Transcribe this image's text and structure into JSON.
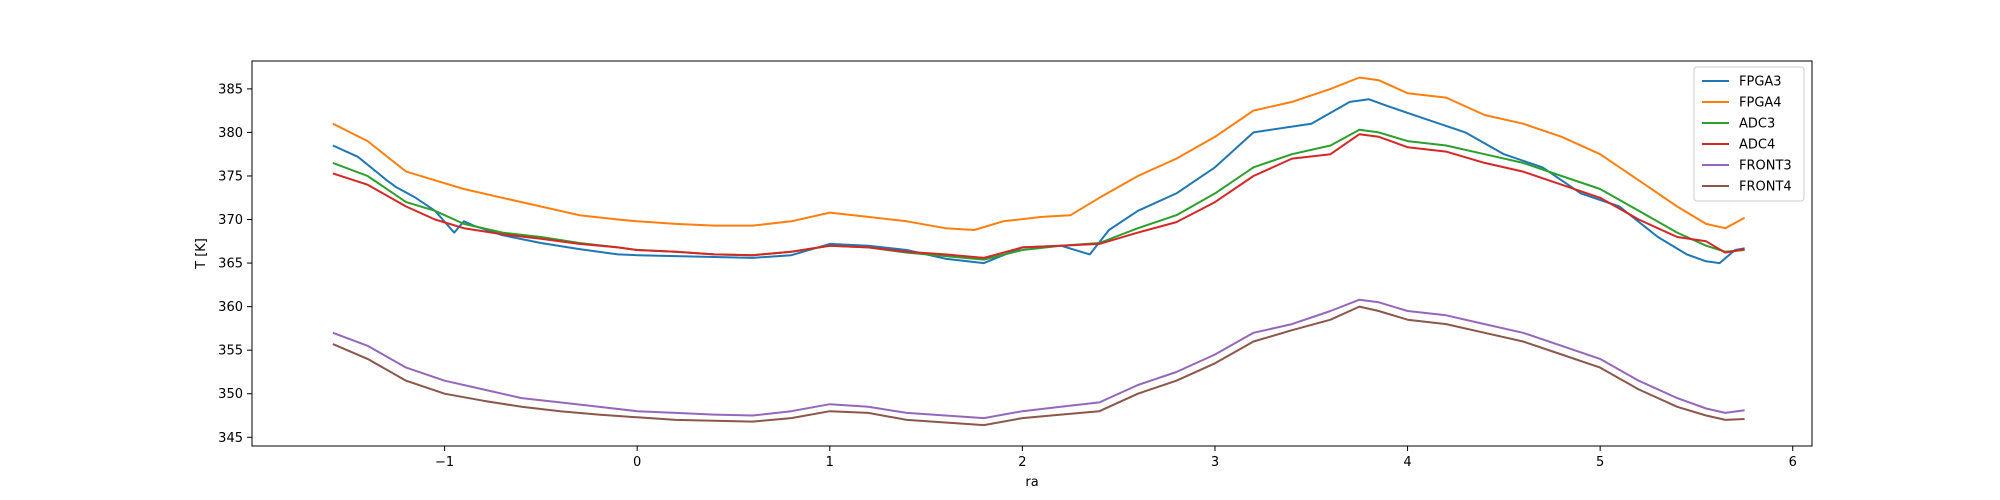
{
  "chart_data": {
    "type": "line",
    "title": "",
    "xlabel": "ra",
    "ylabel": "T [K]",
    "xlim": [
      -2.0,
      6.1
    ],
    "ylim": [
      344.0,
      388.2
    ],
    "xticks": [
      -1,
      0,
      1,
      2,
      3,
      4,
      5,
      6
    ],
    "xtick_labels": [
      "−1",
      "0",
      "1",
      "2",
      "3",
      "4",
      "5",
      "6"
    ],
    "yticks": [
      345,
      350,
      355,
      360,
      365,
      370,
      375,
      380,
      385
    ],
    "ytick_labels": [
      "345",
      "350",
      "355",
      "360",
      "365",
      "370",
      "375",
      "380",
      "385"
    ],
    "grid": false,
    "legend_position": "top-right",
    "series": [
      {
        "name": "FPGA3",
        "color": "#1f77b4",
        "x": [
          -1.58,
          -1.45,
          -1.3,
          -1.25,
          -1.15,
          -1.05,
          -0.95,
          -0.9,
          -0.85,
          -0.7,
          -0.5,
          -0.3,
          -0.1,
          0.0,
          0.2,
          0.4,
          0.6,
          0.8,
          1.0,
          1.2,
          1.4,
          1.6,
          1.8,
          2.0,
          2.2,
          2.35,
          2.45,
          2.6,
          2.8,
          3.0,
          3.2,
          3.5,
          3.7,
          3.8,
          3.9,
          4.1,
          4.3,
          4.5,
          4.7,
          4.9,
          5.1,
          5.3,
          5.45,
          5.55,
          5.62,
          5.7,
          5.75
        ],
        "y": [
          378.5,
          377.2,
          374.5,
          373.7,
          372.5,
          371.0,
          368.5,
          369.8,
          369.3,
          368.2,
          367.3,
          366.6,
          366.0,
          365.9,
          365.8,
          365.7,
          365.6,
          365.9,
          367.2,
          367.0,
          366.5,
          365.5,
          365.0,
          366.8,
          367.0,
          366.0,
          368.8,
          371.0,
          373.0,
          376.0,
          380.0,
          381.0,
          383.5,
          383.8,
          383.0,
          381.5,
          380.0,
          377.5,
          376.0,
          373.0,
          371.5,
          368.0,
          366.0,
          365.2,
          365.0,
          366.5,
          366.7
        ]
      },
      {
        "name": "FPGA4",
        "color": "#ff7f0e",
        "x": [
          -1.58,
          -1.4,
          -1.2,
          -1.05,
          -0.9,
          -0.7,
          -0.5,
          -0.3,
          -0.1,
          0.0,
          0.2,
          0.4,
          0.6,
          0.8,
          1.0,
          1.2,
          1.4,
          1.6,
          1.75,
          1.9,
          2.1,
          2.25,
          2.4,
          2.6,
          2.8,
          3.0,
          3.2,
          3.4,
          3.6,
          3.75,
          3.85,
          4.0,
          4.2,
          4.4,
          4.6,
          4.8,
          5.0,
          5.2,
          5.4,
          5.55,
          5.65,
          5.75
        ],
        "y": [
          381.0,
          379.0,
          375.5,
          374.5,
          373.5,
          372.5,
          371.5,
          370.5,
          370.0,
          369.8,
          369.5,
          369.3,
          369.3,
          369.8,
          370.8,
          370.3,
          369.8,
          369.0,
          368.8,
          369.8,
          370.3,
          370.5,
          372.5,
          375.0,
          377.0,
          379.5,
          382.5,
          383.5,
          385.0,
          386.3,
          386.0,
          384.5,
          384.0,
          382.0,
          381.0,
          379.5,
          377.5,
          374.5,
          371.5,
          369.5,
          369.0,
          370.2
        ]
      },
      {
        "name": "ADC3",
        "color": "#2ca02c",
        "x": [
          -1.58,
          -1.4,
          -1.2,
          -1.05,
          -0.9,
          -0.7,
          -0.5,
          -0.3,
          -0.1,
          0.0,
          0.2,
          0.4,
          0.6,
          0.8,
          1.0,
          1.2,
          1.4,
          1.6,
          1.8,
          2.0,
          2.2,
          2.4,
          2.6,
          2.8,
          3.0,
          3.2,
          3.4,
          3.6,
          3.75,
          3.85,
          4.0,
          4.2,
          4.4,
          4.6,
          4.8,
          5.0,
          5.2,
          5.4,
          5.55,
          5.65,
          5.75
        ],
        "y": [
          376.5,
          375.0,
          372.0,
          371.0,
          369.5,
          368.5,
          368.0,
          367.3,
          366.8,
          366.5,
          366.3,
          366.0,
          365.9,
          366.3,
          367.0,
          366.8,
          366.2,
          365.8,
          365.4,
          366.5,
          367.0,
          367.3,
          369.0,
          370.5,
          373.0,
          376.0,
          377.5,
          378.5,
          380.3,
          380.0,
          379.0,
          378.5,
          377.5,
          376.5,
          375.0,
          373.5,
          371.0,
          368.5,
          367.0,
          366.3,
          366.5
        ]
      },
      {
        "name": "ADC4",
        "color": "#d62728",
        "x": [
          -1.58,
          -1.4,
          -1.2,
          -1.05,
          -0.9,
          -0.7,
          -0.5,
          -0.3,
          -0.1,
          0.0,
          0.2,
          0.4,
          0.6,
          0.8,
          1.0,
          1.2,
          1.4,
          1.6,
          1.8,
          2.0,
          2.2,
          2.4,
          2.6,
          2.8,
          3.0,
          3.2,
          3.4,
          3.6,
          3.75,
          3.85,
          4.0,
          4.2,
          4.4,
          4.6,
          4.8,
          5.0,
          5.2,
          5.4,
          5.55,
          5.65,
          5.75
        ],
        "y": [
          375.3,
          374.0,
          371.5,
          370.0,
          369.0,
          368.3,
          367.8,
          367.2,
          366.8,
          366.5,
          366.3,
          366.0,
          365.9,
          366.3,
          367.0,
          366.8,
          366.3,
          366.0,
          365.6,
          366.8,
          367.0,
          367.2,
          368.5,
          369.7,
          372.0,
          375.0,
          377.0,
          377.5,
          379.8,
          379.5,
          378.3,
          377.8,
          376.5,
          375.5,
          374.0,
          372.5,
          370.0,
          368.0,
          367.5,
          366.2,
          366.6
        ]
      },
      {
        "name": "FRONT3",
        "color": "#9467bd",
        "x": [
          -1.58,
          -1.4,
          -1.2,
          -1.0,
          -0.8,
          -0.6,
          -0.4,
          -0.2,
          0.0,
          0.2,
          0.4,
          0.6,
          0.8,
          1.0,
          1.2,
          1.4,
          1.6,
          1.8,
          2.0,
          2.2,
          2.4,
          2.6,
          2.8,
          3.0,
          3.2,
          3.4,
          3.6,
          3.75,
          3.85,
          4.0,
          4.2,
          4.4,
          4.6,
          4.8,
          5.0,
          5.2,
          5.4,
          5.55,
          5.65,
          5.75
        ],
        "y": [
          357.0,
          355.5,
          353.0,
          351.5,
          350.5,
          349.5,
          349.0,
          348.5,
          348.0,
          347.8,
          347.6,
          347.5,
          348.0,
          348.8,
          348.5,
          347.8,
          347.5,
          347.2,
          348.0,
          348.5,
          349.0,
          351.0,
          352.5,
          354.5,
          357.0,
          358.0,
          359.5,
          360.8,
          360.5,
          359.5,
          359.0,
          358.0,
          357.0,
          355.5,
          354.0,
          351.5,
          349.5,
          348.3,
          347.8,
          348.1
        ]
      },
      {
        "name": "FRONT4",
        "color": "#8c564b",
        "x": [
          -1.58,
          -1.4,
          -1.2,
          -1.0,
          -0.8,
          -0.6,
          -0.4,
          -0.2,
          0.0,
          0.2,
          0.4,
          0.6,
          0.8,
          1.0,
          1.2,
          1.4,
          1.6,
          1.8,
          2.0,
          2.2,
          2.4,
          2.6,
          2.8,
          3.0,
          3.2,
          3.4,
          3.6,
          3.75,
          3.85,
          4.0,
          4.2,
          4.4,
          4.6,
          4.8,
          5.0,
          5.2,
          5.4,
          5.55,
          5.65,
          5.75
        ],
        "y": [
          355.7,
          354.0,
          351.5,
          350.0,
          349.2,
          348.5,
          348.0,
          347.6,
          347.3,
          347.0,
          346.9,
          346.8,
          347.2,
          348.0,
          347.8,
          347.0,
          346.7,
          346.4,
          347.2,
          347.6,
          348.0,
          350.0,
          351.5,
          353.5,
          356.0,
          357.3,
          358.5,
          360.0,
          359.5,
          358.5,
          358.0,
          357.0,
          356.0,
          354.5,
          353.0,
          350.5,
          348.5,
          347.5,
          347.0,
          347.1
        ]
      }
    ]
  }
}
